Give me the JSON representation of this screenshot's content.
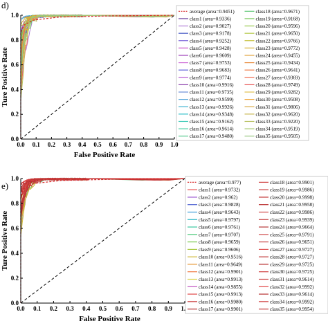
{
  "chart_data": [
    {
      "type": "line",
      "panel_label": "d)",
      "xlabel": "False Positive Rate",
      "ylabel": "Ture Positive Rate",
      "xlim": [
        0.0,
        1.0
      ],
      "ylim": [
        0.0,
        1.0
      ],
      "xticks": [
        "0.0",
        "0.1",
        "0.2",
        "0.3",
        "0.4",
        "0.5",
        "0.6",
        "0.7",
        "0.8",
        "0.9",
        "1.0"
      ],
      "yticks": [
        "0.0",
        "0.2",
        "0.4",
        "0.6",
        "0.8",
        "1.0"
      ],
      "grid": false,
      "legend_placement": "right",
      "diagonal": true,
      "series": [
        {
          "name": "average",
          "label": "average (area=0.9451)",
          "area": 0.9451,
          "color": "#d62728",
          "dashed": true
        },
        {
          "name": "class1",
          "label": "class1 (area=0.9336)",
          "area": 0.9336,
          "color": "#6b3fa0"
        },
        {
          "name": "class2",
          "label": "class2 (area=0.9027)",
          "area": 0.9027,
          "color": "#b07fd6"
        },
        {
          "name": "class3",
          "label": "class3 (area=0.9178)",
          "area": 0.9178,
          "color": "#3a4fc2"
        },
        {
          "name": "class4",
          "label": "class4 (area=0.9252)",
          "area": 0.9252,
          "color": "#7a62d9"
        },
        {
          "name": "class5",
          "label": "class5 (area=0.9428)",
          "area": 0.9428,
          "color": "#c94fc8"
        },
        {
          "name": "class6",
          "label": "class6 (area=0.9609)",
          "area": 0.9609,
          "color": "#9a3ab8"
        },
        {
          "name": "class7",
          "label": "class7 (area=0.9753)",
          "area": 0.9753,
          "color": "#d070d8"
        },
        {
          "name": "class8",
          "label": "class8 (area=0.9683)",
          "area": 0.9683,
          "color": "#5a5ed8"
        },
        {
          "name": "class9",
          "label": "class9 (area=0.9774)",
          "area": 0.9774,
          "color": "#b455d0"
        },
        {
          "name": "class10",
          "label": "class10 (area=0.9916)",
          "area": 0.9916,
          "color": "#8e44ad"
        },
        {
          "name": "class11",
          "label": "class11 (area=0.9735)",
          "area": 0.9735,
          "color": "#6a8fd8"
        },
        {
          "name": "class12",
          "label": "class12 (area=0.9599)",
          "area": 0.9599,
          "color": "#4fa3d9"
        },
        {
          "name": "class13",
          "label": "class13 (area=0.9926)",
          "area": 0.9926,
          "color": "#3ab0d0"
        },
        {
          "name": "class14",
          "label": "class14 (area=0.9348)",
          "area": 0.9348,
          "color": "#2fc0c8"
        },
        {
          "name": "class15",
          "label": "class15 (area=0.9162)",
          "area": 0.9162,
          "color": "#3dc9b8"
        },
        {
          "name": "class16",
          "label": "class16 (area=0.9614)",
          "area": 0.9614,
          "color": "#4fd0a8"
        },
        {
          "name": "class17",
          "label": "class17 (area=0.9480)",
          "area": 0.948,
          "color": "#55c98e"
        },
        {
          "name": "class18",
          "label": "class18 (area=0.9671)",
          "area": 0.9671,
          "color": "#62c878"
        },
        {
          "name": "class19",
          "label": "class19 (area=0.9168)",
          "area": 0.9168,
          "color": "#7ac85e"
        },
        {
          "name": "class20",
          "label": "class20 (area=0.9596)",
          "area": 0.9596,
          "color": "#95c84a"
        },
        {
          "name": "class21",
          "label": "class21 (area=0.9650)",
          "area": 0.965,
          "color": "#b0c63e"
        },
        {
          "name": "class22",
          "label": "class22 (area=0.9766)",
          "area": 0.9766,
          "color": "#c6c03a"
        },
        {
          "name": "class23",
          "label": "class23 (area=0.9772)",
          "area": 0.9772,
          "color": "#d6b238"
        },
        {
          "name": "class24",
          "label": "class24 (area=0.9455)",
          "area": 0.9455,
          "color": "#e0a03a"
        },
        {
          "name": "class25",
          "label": "class25 (area=0.9434)",
          "area": 0.9434,
          "color": "#e88c3e"
        },
        {
          "name": "class26",
          "label": "class26 (area=0.9641)",
          "area": 0.9641,
          "color": "#ee7a44"
        },
        {
          "name": "class27",
          "label": "class27 (area=0.9369)",
          "area": 0.9369,
          "color": "#f0684c"
        },
        {
          "name": "class28",
          "label": "class28 (area=0.9749)",
          "area": 0.9749,
          "color": "#e85a5a"
        },
        {
          "name": "class29",
          "label": "class29 (area=0.9282)",
          "area": 0.9282,
          "color": "#e0c050"
        },
        {
          "name": "class30",
          "label": "class30 (area=0.9508)",
          "area": 0.9508,
          "color": "#f0a030"
        },
        {
          "name": "class31",
          "label": "class31 (area=0.9806)",
          "area": 0.9806,
          "color": "#d8a840"
        },
        {
          "name": "class32",
          "label": "class32 (area=0.9620)",
          "area": 0.962,
          "color": "#c8b850"
        },
        {
          "name": "class33",
          "label": "class33 (area=0.9220)",
          "area": 0.922,
          "color": "#b8c060"
        },
        {
          "name": "class34",
          "label": "class34 (area=0.9519)",
          "area": 0.9519,
          "color": "#a8c870"
        },
        {
          "name": "class35",
          "label": "class35 (area=0.9505)",
          "area": 0.9505,
          "color": "#98c880"
        }
      ]
    },
    {
      "type": "line",
      "panel_label": "e)",
      "xlabel": "False Positive Rate",
      "ylabel": "Ture Positive Rate",
      "xlim": [
        0.0,
        1.0
      ],
      "ylim": [
        0.0,
        1.0
      ],
      "xticks": [
        "0.0",
        "0.1",
        "0.2",
        "0.3",
        "0.4",
        "0.5",
        "0.6",
        "0.7",
        "0.8",
        "0.9",
        "1.0"
      ],
      "yticks": [
        "0.0",
        "0.2",
        "0.4",
        "0.6",
        "0.8",
        "1.0"
      ],
      "grid": false,
      "legend_placement": "right",
      "diagonal": true,
      "series": [
        {
          "name": "average",
          "label": "average (area=0.977)",
          "area": 0.977,
          "color": "#d62728",
          "dashed": true
        },
        {
          "name": "class1",
          "label": "class1 (area=0.9732)",
          "area": 0.9732,
          "color": "#e84a4a"
        },
        {
          "name": "class2",
          "label": "class2 (area=0.962)",
          "area": 0.962,
          "color": "#9b59d0"
        },
        {
          "name": "class3",
          "label": "class3 (area=0.9828)",
          "area": 0.9828,
          "color": "#4a5fd0"
        },
        {
          "name": "class4",
          "label": "class4 (area=0.9643)",
          "area": 0.9643,
          "color": "#3a9ad8"
        },
        {
          "name": "class5",
          "label": "class5 (area=0.9797)",
          "area": 0.9797,
          "color": "#2fb8c8"
        },
        {
          "name": "class6",
          "label": "class6 (area=0.9761)",
          "area": 0.9761,
          "color": "#3ac8a0"
        },
        {
          "name": "class7",
          "label": "class7 (area=0.9707)",
          "area": 0.9707,
          "color": "#4ac878"
        },
        {
          "name": "class8",
          "label": "class8 (area=0.9659)",
          "area": 0.9659,
          "color": "#7ac850"
        },
        {
          "name": "class9",
          "label": "class9 (area=0.9606)",
          "area": 0.9606,
          "color": "#a8c840"
        },
        {
          "name": "class10",
          "label": "class10 (area=0.9516)",
          "area": 0.9516,
          "color": "#d0b838"
        },
        {
          "name": "class11",
          "label": "class11 (area=0.9649)",
          "area": 0.9649,
          "color": "#e89a3a"
        },
        {
          "name": "class12",
          "label": "class12 (area=0.9901)",
          "area": 0.9901,
          "color": "#f07a44"
        },
        {
          "name": "class13",
          "label": "class13 (area=0.9913)",
          "area": 0.9913,
          "color": "#d8d040"
        },
        {
          "name": "class14",
          "label": "class14 (area=0.9855)",
          "area": 0.9855,
          "color": "#c050c0"
        },
        {
          "name": "class15",
          "label": "class15 (area=0.9913)",
          "area": 0.9913,
          "color": "#e04848"
        },
        {
          "name": "class16",
          "label": "class16 (area=0.9980)",
          "area": 0.998,
          "color": "#c83838"
        },
        {
          "name": "class17",
          "label": "class17 (area=0.9901)",
          "area": 0.9901,
          "color": "#b02a2a"
        },
        {
          "name": "class18",
          "label": "class18 (area=0.9901)",
          "area": 0.9901,
          "color": "#d04040"
        },
        {
          "name": "class19",
          "label": "class19 (area=0.9986)",
          "area": 0.9986,
          "color": "#c83838"
        },
        {
          "name": "class20",
          "label": "class20 (area=0.9998)",
          "area": 0.9998,
          "color": "#c03030"
        },
        {
          "name": "class21",
          "label": "class21 (area=0.9958)",
          "area": 0.9958,
          "color": "#b82828"
        },
        {
          "name": "class22",
          "label": "class22 (area=0.9986)",
          "area": 0.9986,
          "color": "#d04848"
        },
        {
          "name": "class23",
          "label": "class23 (area=0.9939)",
          "area": 0.9939,
          "color": "#c84040"
        },
        {
          "name": "class24",
          "label": "class24 (area=0.9664)",
          "area": 0.9664,
          "color": "#b83838"
        },
        {
          "name": "class25",
          "label": "class25 (area=0.9791)",
          "area": 0.9791,
          "color": "#d05050"
        },
        {
          "name": "class26",
          "label": "class26 (area=0.9651)",
          "area": 0.9651,
          "color": "#c84848"
        },
        {
          "name": "class27",
          "label": "class27 (area=0.9727)",
          "area": 0.9727,
          "color": "#e05050"
        },
        {
          "name": "class28",
          "label": "class28 (area=0.9727)",
          "area": 0.9727,
          "color": "#c03838"
        },
        {
          "name": "class29",
          "label": "class29 (area=0.9725)",
          "area": 0.9725,
          "color": "#b83030"
        },
        {
          "name": "class30",
          "label": "class30 (area=0.9725)",
          "area": 0.9725,
          "color": "#d04040"
        },
        {
          "name": "class31",
          "label": "class31 (area=0.9614)",
          "area": 0.9614,
          "color": "#c83a3a"
        },
        {
          "name": "class32",
          "label": "class32 (area=0.9992)",
          "area": 0.9992,
          "color": "#e04040"
        },
        {
          "name": "class33",
          "label": "class33 (area=0.9614)",
          "area": 0.9614,
          "color": "#b83232"
        },
        {
          "name": "class34",
          "label": "class34 (area=0.9992)",
          "area": 0.9992,
          "color": "#d03c3c"
        },
        {
          "name": "class35",
          "label": "class35 (area=0.9954)",
          "area": 0.9954,
          "color": "#c03434"
        }
      ]
    }
  ]
}
